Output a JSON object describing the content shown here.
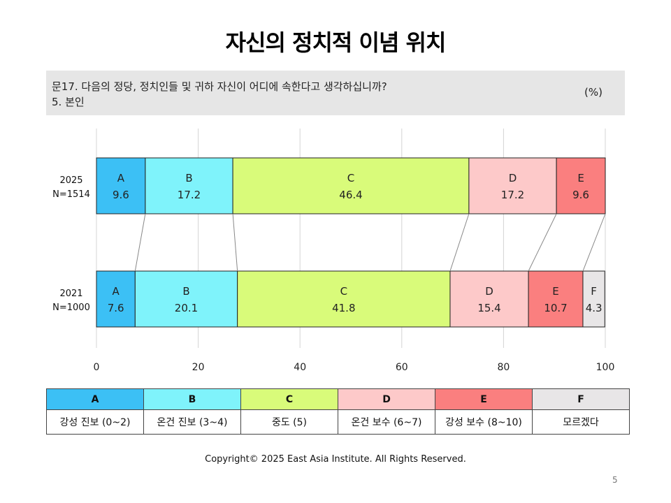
{
  "title": "자신의 정치적 이념 위치",
  "question": {
    "line1": "문17. 다음의 정당, 정치인들 및 귀하 자신이 어디에 속한다고 생각하십니까?",
    "line2": "5. 본인",
    "unit": "(%)"
  },
  "chart_data": {
    "type": "bar",
    "orientation": "horizontal-stacked-100",
    "xlim": [
      0,
      100
    ],
    "xticks": [
      "0",
      "20",
      "40",
      "60",
      "80",
      "100"
    ],
    "grid": true,
    "series": [
      {
        "key": "A",
        "color": "#3cc0f5"
      },
      {
        "key": "B",
        "color": "#7ff3fb"
      },
      {
        "key": "C",
        "color": "#d9fb7a"
      },
      {
        "key": "D",
        "color": "#fdc9c9"
      },
      {
        "key": "E",
        "color": "#fa7f7f"
      },
      {
        "key": "F",
        "color": "#e8e6e7"
      }
    ],
    "rows": [
      {
        "label": "2025",
        "n": "N=1514",
        "segments": [
          {
            "key": "A",
            "value": 9.6,
            "label": "9.6"
          },
          {
            "key": "B",
            "value": 17.2,
            "label": "17.2"
          },
          {
            "key": "C",
            "value": 46.4,
            "label": "46.4"
          },
          {
            "key": "D",
            "value": 17.2,
            "label": "17.2"
          },
          {
            "key": "E",
            "value": 9.6,
            "label": "9.6"
          }
        ]
      },
      {
        "label": "2021",
        "n": "N=1000",
        "segments": [
          {
            "key": "A",
            "value": 7.6,
            "label": "7.6"
          },
          {
            "key": "B",
            "value": 20.1,
            "label": "20.1"
          },
          {
            "key": "C",
            "value": 41.8,
            "label": "41.8"
          },
          {
            "key": "D",
            "value": 15.4,
            "label": "15.4"
          },
          {
            "key": "E",
            "value": 10.7,
            "label": "10.7"
          },
          {
            "key": "F",
            "value": 4.3,
            "label": "4.3"
          }
        ]
      }
    ]
  },
  "legend": [
    {
      "key": "A",
      "desc": "강성 진보 (0~2)",
      "color": "#3cc0f5"
    },
    {
      "key": "B",
      "desc": "온건 진보 (3~4)",
      "color": "#7ff3fb"
    },
    {
      "key": "C",
      "desc": "중도 (5)",
      "color": "#d9fb7a"
    },
    {
      "key": "D",
      "desc": "온건 보수 (6~7)",
      "color": "#fdc9c9"
    },
    {
      "key": "E",
      "desc": "강성 보수 (8~10)",
      "color": "#fa7f7f"
    },
    {
      "key": "F",
      "desc": "모르겠다",
      "color": "#e8e6e7"
    }
  ],
  "copyright": "Copyright© 2025 East Asia Institute. All Rights Reserved.",
  "page_number": "5"
}
